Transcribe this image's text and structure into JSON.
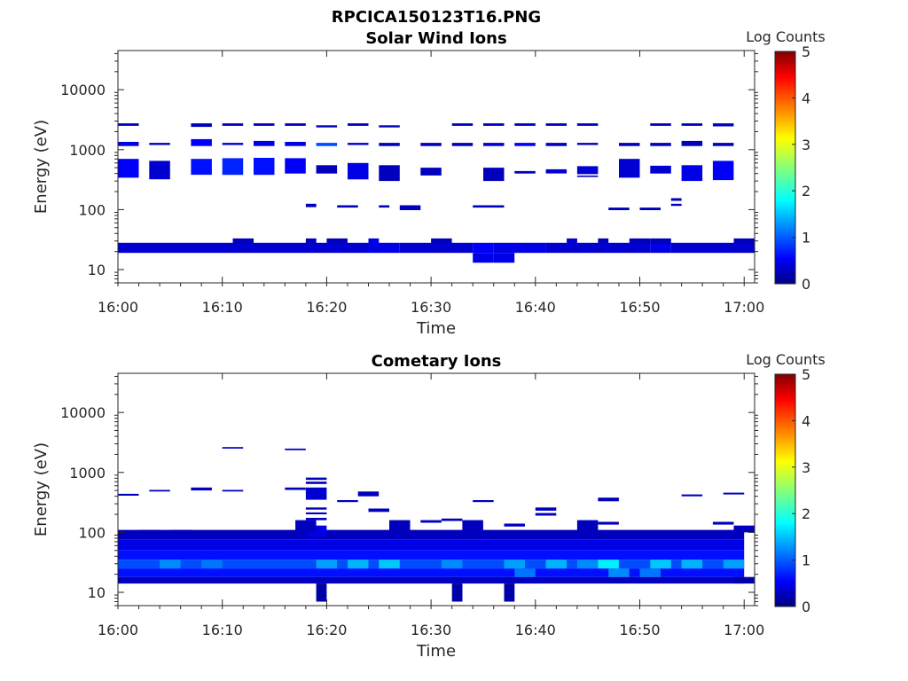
{
  "figure_title": "RPCICA150123T16.PNG",
  "colorbar": {
    "label": "Log Counts",
    "range": [
      0,
      5
    ],
    "ticks": [
      "0",
      "1",
      "2",
      "3",
      "4",
      "5"
    ],
    "colormap": "jet"
  },
  "chart_data": [
    {
      "type": "heatmap",
      "title": "Solar Wind Ions",
      "xlabel": "Time",
      "ylabel": "Energy (eV)",
      "yscale": "log",
      "xlim": [
        "16:00",
        "17:01"
      ],
      "ylim": [
        6,
        45000
      ],
      "xticks": [
        "16:00",
        "16:10",
        "16:20",
        "16:30",
        "16:40",
        "16:50",
        "17:00"
      ],
      "yticks": [
        "10",
        "100",
        "1000",
        "10000"
      ],
      "cells": [
        [
          "16:00",
          "16:24",
          19,
          28,
          0.4
        ],
        [
          "16:24",
          "16:27",
          19,
          28,
          0.5
        ],
        [
          "16:27",
          "16:34",
          19,
          28,
          0.4
        ],
        [
          "16:34",
          "16:36",
          19,
          28,
          0.6
        ],
        [
          "16:36",
          "16:41",
          19,
          28,
          0.5
        ],
        [
          "16:41",
          "16:51",
          19,
          28,
          0.4
        ],
        [
          "16:51",
          "16:53",
          19,
          28,
          0.5
        ],
        [
          "16:53",
          "17:01",
          19,
          28,
          0.4
        ],
        [
          "16:11",
          "16:13",
          27,
          33,
          0.3
        ],
        [
          "16:18",
          "16:19",
          27,
          33,
          0.3
        ],
        [
          "16:20",
          "16:22",
          27,
          33,
          0.3
        ],
        [
          "16:24",
          "16:25",
          27,
          33,
          0.5
        ],
        [
          "16:30",
          "16:32",
          27,
          33,
          0.3
        ],
        [
          "16:43",
          "16:44",
          27,
          33,
          0.4
        ],
        [
          "16:46",
          "16:47",
          27,
          33,
          0.3
        ],
        [
          "16:49",
          "16:51",
          27,
          33,
          0.3
        ],
        [
          "16:51",
          "16:53",
          27,
          33,
          0.3
        ],
        [
          "16:59",
          "17:01",
          27,
          33,
          0.3
        ],
        [
          "16:34",
          "16:36",
          13,
          19,
          0.5
        ],
        [
          "16:36",
          "16:38",
          13,
          19,
          0.5
        ],
        [
          "16:00",
          "16:02",
          2500,
          2750,
          0.3
        ],
        [
          "16:07",
          "16:09",
          2400,
          2750,
          0.3
        ],
        [
          "16:10",
          "16:12",
          2500,
          2750,
          0.3
        ],
        [
          "16:13",
          "16:15",
          2500,
          2750,
          0.3
        ],
        [
          "16:16",
          "16:18",
          2500,
          2750,
          0.3
        ],
        [
          "16:19",
          "16:21",
          2350,
          2550,
          0.3
        ],
        [
          "16:22",
          "16:24",
          2500,
          2750,
          0.3
        ],
        [
          "16:25",
          "16:27",
          2350,
          2550,
          0.3
        ],
        [
          "16:32",
          "16:34",
          2500,
          2750,
          0.3
        ],
        [
          "16:35",
          "16:37",
          2500,
          2750,
          0.3
        ],
        [
          "16:38",
          "16:40",
          2500,
          2750,
          0.3
        ],
        [
          "16:41",
          "16:43",
          2500,
          2750,
          0.3
        ],
        [
          "16:44",
          "16:46",
          2500,
          2750,
          0.3
        ],
        [
          "16:51",
          "16:53",
          2500,
          2750,
          0.3
        ],
        [
          "16:54",
          "16:56",
          2500,
          2750,
          0.3
        ],
        [
          "16:57",
          "16:59",
          2450,
          2750,
          0.3
        ],
        [
          "16:00",
          "16:02",
          1150,
          1350,
          0.5
        ],
        [
          "16:03",
          "16:05",
          1200,
          1300,
          0.3
        ],
        [
          "16:07",
          "16:09",
          1150,
          1500,
          0.6
        ],
        [
          "16:10",
          "16:12",
          1200,
          1300,
          0.4
        ],
        [
          "16:13",
          "16:15",
          1150,
          1400,
          0.5
        ],
        [
          "16:16",
          "16:18",
          1150,
          1350,
          0.5
        ],
        [
          "16:19",
          "16:21",
          1150,
          1300,
          1.0
        ],
        [
          "16:22",
          "16:24",
          1200,
          1300,
          0.4
        ],
        [
          "16:25",
          "16:27",
          1150,
          1300,
          0.3
        ],
        [
          "16:29",
          "16:31",
          1150,
          1300,
          0.3
        ],
        [
          "16:32",
          "16:34",
          1150,
          1300,
          0.3
        ],
        [
          "16:35",
          "16:37",
          1150,
          1300,
          0.4
        ],
        [
          "16:38",
          "16:40",
          1150,
          1300,
          0.6
        ],
        [
          "16:41",
          "16:43",
          1150,
          1300,
          0.3
        ],
        [
          "16:44",
          "16:46",
          1200,
          1300,
          0.3
        ],
        [
          "16:48",
          "16:50",
          1150,
          1300,
          0.3
        ],
        [
          "16:51",
          "16:53",
          1150,
          1300,
          0.3
        ],
        [
          "16:54",
          "16:56",
          1150,
          1400,
          0.3
        ],
        [
          "16:57",
          "16:59",
          1150,
          1300,
          0.3
        ],
        [
          "16:00",
          "16:02",
          340,
          700,
          0.6
        ],
        [
          "16:03",
          "16:05",
          320,
          650,
          0.4
        ],
        [
          "16:07",
          "16:09",
          380,
          700,
          0.7
        ],
        [
          "16:10",
          "16:12",
          380,
          720,
          0.8
        ],
        [
          "16:13",
          "16:15",
          380,
          730,
          0.7
        ],
        [
          "16:16",
          "16:18",
          400,
          720,
          0.6
        ],
        [
          "16:19",
          "16:21",
          400,
          550,
          0.3
        ],
        [
          "16:22",
          "16:24",
          320,
          600,
          0.5
        ],
        [
          "16:25",
          "16:27",
          300,
          550,
          0.3
        ],
        [
          "16:29",
          "16:31",
          370,
          500,
          0.3
        ],
        [
          "16:35",
          "16:37",
          300,
          500,
          0.3
        ],
        [
          "16:38",
          "16:40",
          400,
          440,
          0.3
        ],
        [
          "16:41",
          "16:43",
          400,
          470,
          0.4
        ],
        [
          "16:44",
          "16:46",
          390,
          530,
          0.4
        ],
        [
          "16:44",
          "16:46",
          350,
          370,
          0.3
        ],
        [
          "16:48",
          "16:50",
          340,
          700,
          0.4
        ],
        [
          "16:51",
          "16:53",
          400,
          540,
          0.4
        ],
        [
          "16:54",
          "16:56",
          300,
          550,
          0.5
        ],
        [
          "16:57",
          "16:59",
          310,
          650,
          0.6
        ],
        [
          "16:18",
          "16:19",
          110,
          125,
          0.3
        ],
        [
          "16:21",
          "16:23",
          108,
          118,
          0.3
        ],
        [
          "16:25",
          "16:26",
          108,
          118,
          0.3
        ],
        [
          "16:27",
          "16:29",
          98,
          118,
          0.3
        ],
        [
          "16:34",
          "16:37",
          108,
          118,
          0.3
        ],
        [
          "16:47",
          "16:49",
          98,
          108,
          0.3
        ],
        [
          "16:50",
          "16:52",
          98,
          108,
          0.3
        ],
        [
          "16:53",
          "16:54",
          140,
          155,
          0.3
        ],
        [
          "16:53",
          "16:54",
          115,
          125,
          0.3
        ]
      ]
    },
    {
      "type": "heatmap",
      "title": "Cometary Ions",
      "xlabel": "Time",
      "ylabel": "Energy (eV)",
      "yscale": "log",
      "xlim": [
        "16:00",
        "17:01"
      ],
      "ylim": [
        6,
        45000
      ],
      "xticks": [
        "16:00",
        "16:10",
        "16:20",
        "16:30",
        "16:40",
        "16:50",
        "17:00"
      ],
      "yticks": [
        "10",
        "100",
        "1000",
        "10000"
      ],
      "cells": [
        [
          "16:00",
          "17:00",
          75,
          110,
          0.3
        ],
        [
          "16:00",
          "17:00",
          50,
          75,
          0.5
        ],
        [
          "16:00",
          "17:00",
          35,
          50,
          0.7
        ],
        [
          "16:00",
          "17:00",
          25,
          35,
          1.0
        ],
        [
          "16:00",
          "17:00",
          18,
          25,
          0.7
        ],
        [
          "16:00",
          "17:00",
          14,
          18,
          0.3
        ],
        [
          "16:02",
          "16:04",
          80,
          110,
          0.3
        ],
        [
          "16:05",
          "16:07",
          85,
          110,
          0.3
        ],
        [
          "16:18",
          "16:20",
          85,
          130,
          0.5
        ],
        [
          "16:26",
          "16:28",
          90,
          160,
          0.3
        ],
        [
          "16:33",
          "16:35",
          90,
          160,
          0.3
        ],
        [
          "16:44",
          "16:46",
          90,
          160,
          0.3
        ],
        [
          "16:59",
          "17:01",
          100,
          130,
          0.3
        ],
        [
          "16:17",
          "16:19",
          100,
          160,
          0.3
        ],
        [
          "16:04",
          "16:06",
          25,
          35,
          1.3
        ],
        [
          "16:08",
          "16:10",
          25,
          35,
          1.2
        ],
        [
          "16:19",
          "16:21",
          25,
          35,
          1.4
        ],
        [
          "16:22",
          "16:24",
          25,
          35,
          1.5
        ],
        [
          "16:25",
          "16:27",
          25,
          35,
          1.6
        ],
        [
          "16:31",
          "16:33",
          25,
          35,
          1.3
        ],
        [
          "16:37",
          "16:39",
          25,
          35,
          1.4
        ],
        [
          "16:41",
          "16:43",
          25,
          35,
          1.5
        ],
        [
          "16:44",
          "16:46",
          25,
          35,
          1.3
        ],
        [
          "16:46",
          "16:48",
          25,
          35,
          1.8
        ],
        [
          "16:51",
          "16:53",
          25,
          35,
          1.6
        ],
        [
          "16:54",
          "16:56",
          25,
          35,
          1.5
        ],
        [
          "16:58",
          "17:00",
          25,
          35,
          1.4
        ],
        [
          "16:38",
          "16:40",
          18,
          25,
          1.2
        ],
        [
          "16:47",
          "16:49",
          18,
          25,
          1.3
        ],
        [
          "16:50",
          "16:52",
          18,
          25,
          1.2
        ],
        [
          "16:19",
          "16:20",
          7,
          14,
          0.2
        ],
        [
          "16:32",
          "16:33",
          7,
          14,
          0.2
        ],
        [
          "16:37",
          "16:38",
          7,
          14,
          0.2
        ],
        [
          "16:59",
          "17:01",
          14,
          18,
          0.2
        ],
        [
          "16:00",
          "16:02",
          410,
          440,
          0.3
        ],
        [
          "16:03",
          "16:05",
          480,
          510,
          0.3
        ],
        [
          "16:07",
          "16:09",
          500,
          560,
          0.3
        ],
        [
          "16:10",
          "16:12",
          480,
          510,
          0.3
        ],
        [
          "16:10",
          "16:12",
          2500,
          2650,
          0.3
        ],
        [
          "16:16",
          "16:18",
          2350,
          2500,
          0.3
        ],
        [
          "16:16",
          "16:18",
          510,
          560,
          0.3
        ],
        [
          "16:18",
          "16:20",
          350,
          560,
          0.4
        ],
        [
          "16:18",
          "16:20",
          640,
          700,
          0.3
        ],
        [
          "16:18",
          "16:20",
          750,
          820,
          0.3
        ],
        [
          "16:18",
          "16:20",
          240,
          260,
          0.3
        ],
        [
          "16:18",
          "16:20",
          200,
          215,
          0.3
        ],
        [
          "16:18",
          "16:20",
          160,
          175,
          0.3
        ],
        [
          "16:21",
          "16:23",
          320,
          345,
          0.3
        ],
        [
          "16:23",
          "16:25",
          400,
          480,
          0.3
        ],
        [
          "16:24",
          "16:26",
          220,
          250,
          0.3
        ],
        [
          "16:29",
          "16:31",
          145,
          160,
          0.3
        ],
        [
          "16:31",
          "16:33",
          155,
          170,
          0.3
        ],
        [
          "16:34",
          "16:36",
          320,
          345,
          0.3
        ],
        [
          "16:37",
          "16:39",
          125,
          140,
          0.3
        ],
        [
          "16:40",
          "16:42",
          230,
          260,
          0.3
        ],
        [
          "16:40",
          "16:42",
          190,
          210,
          0.3
        ],
        [
          "16:46",
          "16:48",
          330,
          380,
          0.3
        ],
        [
          "16:46",
          "16:48",
          135,
          150,
          0.3
        ],
        [
          "16:54",
          "16:56",
          400,
          430,
          0.3
        ],
        [
          "16:57",
          "16:59",
          135,
          150,
          0.3
        ],
        [
          "16:58",
          "17:00",
          430,
          460,
          0.3
        ]
      ]
    }
  ]
}
